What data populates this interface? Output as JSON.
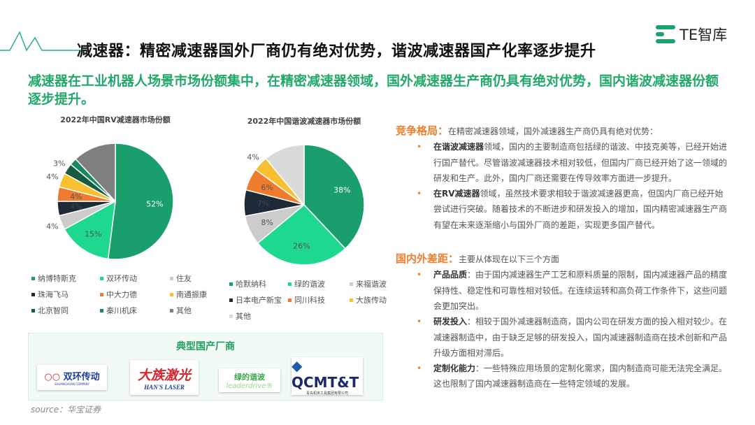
{
  "header": {
    "title": "减速器：精密减速器国外厂商仍有绝对优势，谐波减速器国产化率逐步提升",
    "brand": "TE智库"
  },
  "subtitle": "减速器在工业机器人场景市场份额集中，在精密减速器领域，国外减速器生产商仍具有绝对优势，国内谐波减速器份额逐步提升。",
  "colors": {
    "accent_green": "#22a86a",
    "accent_orange": "#f07d2a"
  },
  "chart_data": [
    {
      "type": "pie",
      "title": "2022年中国RV减速器市场份额",
      "legend_placement": "bottom",
      "slices": [
        {
          "name": "纳博特斯克",
          "value": 52,
          "label": "52%",
          "color": "#1a9e6c"
        },
        {
          "name": "双环传动",
          "value": 15,
          "label": "15%",
          "color": "#1ed88f"
        },
        {
          "name": "住友",
          "value": 4,
          "label": "4%",
          "color": "#cccccc"
        },
        {
          "name": "珠海飞马",
          "value": 4,
          "label": "4%",
          "color": "#1e2a38"
        },
        {
          "name": "中大力德",
          "value": 4,
          "label": "4%",
          "color": "#ef7b2e"
        },
        {
          "name": "南通振康",
          "value": 4,
          "label": "4%",
          "color": "#f7c02f"
        },
        {
          "name": "北京智同",
          "value": 3,
          "label": "3%",
          "color": "#175c3e"
        },
        {
          "name": "秦川机床",
          "value": 2,
          "label": "",
          "color": "#178a5a"
        },
        {
          "name": "其他",
          "value": 12,
          "label": "",
          "color": "#7f7f7f"
        }
      ]
    },
    {
      "type": "pie",
      "title": "2022年中国谐波减速器市场份额",
      "legend_placement": "bottom",
      "slices": [
        {
          "name": "哈默纳科",
          "value": 38,
          "label": "38%",
          "color": "#1a9e6c"
        },
        {
          "name": "绿的谐波",
          "value": 26,
          "label": "26%",
          "color": "#1ed88f"
        },
        {
          "name": "来福谐波",
          "value": 8,
          "label": "8%",
          "color": "#cccccc"
        },
        {
          "name": "日本电产新宝",
          "value": 7,
          "label": "7%",
          "color": "#1e2a38"
        },
        {
          "name": "同川科技",
          "value": 6,
          "label": "6%",
          "color": "#ef7b2e"
        },
        {
          "name": "大族传动",
          "value": 4,
          "label": "4%",
          "color": "#f7c02f"
        },
        {
          "name": "其他",
          "value": 11,
          "label": "",
          "color": "#dadada"
        }
      ]
    }
  ],
  "makers": {
    "title": "典型国产厂商",
    "logos": [
      {
        "name": "双环传动",
        "sub": "SHUANGHUAN COMPANY"
      },
      {
        "name": "大族激光",
        "sub": "HAN'S LASER"
      },
      {
        "name": "绿的谐波",
        "sub": "leaderdrive®"
      },
      {
        "name": "QCMT&T",
        "sub": "青岛机床工具集团有限公司"
      }
    ]
  },
  "source": "source：华宝证券",
  "right": {
    "sec1": {
      "head": "竞争格局：",
      "intro": "在精密减速器领域，国外减速器生产商仍具有绝对优势：",
      "items": [
        {
          "bold": "在谐波减速器",
          "text": "领域，国内的主要制造商包括绿的谐波、中技克美等，已经开始进行国产替代。尽管谐波减速器技术相对较低，但国内厂商已经开始了这一领域的研发和生产。此外，国内厂商还需要在传导效率方面进一步提升。"
        },
        {
          "bold": "在RV减速器",
          "text": "领域，虽然技术要求相较于谐波减速器更高，但国内厂商已经开始尝试进行突破。随着技术的不断进步和研发投入的增加，国内精密减速器生产商有望在未来逐渐缩小与国外厂商的差距，实现更多国产替代。"
        }
      ]
    },
    "sec2": {
      "head": "国内外差距：",
      "intro": "主要从体现在以下三个方面",
      "items": [
        {
          "bold": "产品品质",
          "text": "：由于国内减速器生产工艺和原料质量的限制，国内减速器产品的精度保持性、稳定性和可靠性相对较低。在连续运转和高负荷工作条件下，这些问题会更加突出。"
        },
        {
          "bold": "研发投入",
          "text": "：相较于国外减速器制造商，国内公司在研发方面的投入相对较少。在减速器制造中，由于缺乏足够的研发投入，国内减速器制造商在技术创新和产品升级方面相对滞后。"
        },
        {
          "bold": "定制化能力",
          "text": "：一些特殊应用场景的定制化需求，国内制造商可能无法完全满足。这也限制了国内减速器制造商在一些特定领域的发展。"
        }
      ]
    }
  }
}
